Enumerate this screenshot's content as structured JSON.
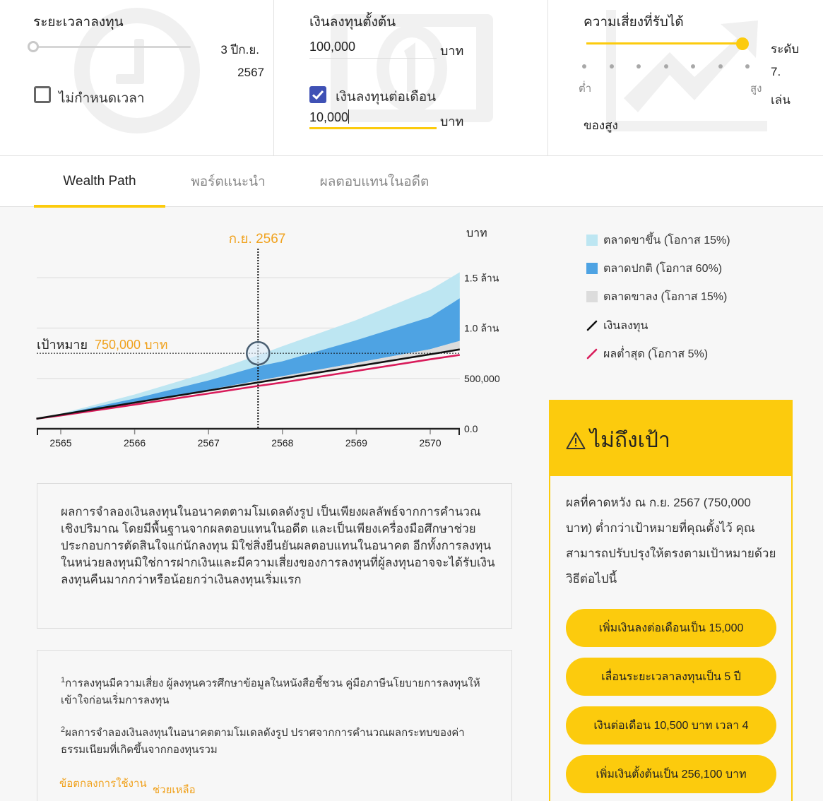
{
  "controls": {
    "duration": {
      "title": "ระยะเวลาลงทุน",
      "value_line1": "3 ปีก.ย.",
      "value_line2": "2567",
      "no_limit_label": "ไม่กำหนดเวลา",
      "no_limit_checked": false,
      "slider_position_pct": 0
    },
    "investment": {
      "title": "เงินลงทุนตั้งต้น",
      "initial_value": "100,000",
      "initial_unit": "บาท",
      "monthly_label": "เงินลงทุนต่อเดือน",
      "monthly_checked": true,
      "monthly_value": "10,000",
      "monthly_unit": "บาท"
    },
    "risk": {
      "title": "ความเสี่ยงที่รับได้",
      "low_label": "ต่ำ",
      "high_label": "สูง",
      "level_line1": "ระดับ",
      "level_line2": "7.",
      "level_line3": "เล่น",
      "level_line4": "ของสูง",
      "steps": 7,
      "selected_step": 7
    }
  },
  "tabs": [
    {
      "label": "Wealth Path",
      "active": true
    },
    {
      "label": "พอร์ตแนะนำ",
      "active": false
    },
    {
      "label": "ผลตอบแทนในอดีต",
      "active": false
    }
  ],
  "chart": {
    "marker_date_label": "ก.ย. 2567",
    "y_unit_label": "บาท",
    "goal_label": "เป้าหมาย",
    "goal_value_label": "750,000 บาท"
  },
  "chart_data": {
    "type": "area",
    "title": "Wealth Path",
    "xlabel": "",
    "ylabel": "บาท",
    "x": [
      2564.67,
      2565,
      2566,
      2567,
      2567.67,
      2568,
      2569,
      2570,
      2570.4
    ],
    "x_ticks": [
      "2565",
      "2566",
      "2567",
      "2568",
      "2569",
      "2570"
    ],
    "y_ticks": [
      "0.0",
      "500,000",
      "1.0 ล้าน",
      "1.5 ล้าน"
    ],
    "ylim": [
      0,
      1500000
    ],
    "grid": true,
    "legend_position": "right",
    "goal": {
      "label": "เป้าหมาย",
      "value": 750000,
      "date": "ก.ย. 2567",
      "x": 2567.67
    },
    "series": [
      {
        "name": "ตลาดขาขึ้น (โอกาส 15%)",
        "kind": "band-top",
        "color": "#bde6f2",
        "values": [
          100000,
          150000,
          340000,
          560000,
          730000,
          820000,
          1080000,
          1380000,
          1555000
        ]
      },
      {
        "name": "ตลาดปกติ (โอกาส 60%)",
        "kind": "band-top",
        "color": "#4ea3e3",
        "values": [
          100000,
          145000,
          300000,
          480000,
          620000,
          670000,
          880000,
          1110000,
          1296000
        ]
      },
      {
        "name": "ตลาดขาลง (โอกาส 15%)",
        "kind": "band-top",
        "color": "#dcdcdc",
        "values": [
          100000,
          140000,
          262000,
          388000,
          478000,
          522000,
          655000,
          790000,
          873000
        ]
      },
      {
        "name": "เงินลงทุน",
        "kind": "line",
        "color": "#111111",
        "values": [
          100000,
          140000,
          260000,
          380000,
          460000,
          500000,
          620000,
          740000,
          788000
        ]
      },
      {
        "name": "ผลต่ำสุด (โอกาส 5%)",
        "kind": "line",
        "color": "#d81b5a",
        "values": [
          100000,
          132000,
          240000,
          350000,
          425000,
          460000,
          575000,
          690000,
          733000
        ]
      }
    ]
  },
  "legend": [
    {
      "label": "ตลาดขาขึ้น (โอกาส 15%)",
      "type": "box",
      "color": "#bde6f2"
    },
    {
      "label": "ตลาดปกติ (โอกาส 60%)",
      "type": "box",
      "color": "#4ea3e3"
    },
    {
      "label": "ตลาดขาลง (โอกาส 15%)",
      "type": "box",
      "color": "#dcdcdc"
    },
    {
      "label": "เงินลงทุน",
      "type": "line",
      "color": "#111111"
    },
    {
      "label": "ผลต่ำสุด (โอกาส 5%)",
      "type": "line",
      "color": "#d81b5a"
    }
  ],
  "alert": {
    "icon": "warning-icon",
    "title": "ไม่ถึงเป้า",
    "body": "ผลที่คาดหวัง ณ ก.ย. 2567 (750,000 บาท) ต่ำกว่าเป้าหมายที่คุณตั้งไว้ คุณสามารถปรับปรุงให้ตรงตามเป้าหมายด้วยวิธีต่อไปนี้",
    "options": [
      "เพิ่มเงินลงต่อเดือนเป็น 15,000",
      "เลื่อนระยะเวลาลงทุนเป็น 5 ปี",
      "เงินต่อเดือน 10,500 บาท เวลา 4",
      "เพิ่มเงินตั้งต้นเป็น 256,100 บาท"
    ]
  },
  "disclaimer": {
    "main": "ผลการจำลองเงินลงทุนในอนาคตตามโมเดลดังรูป เป็นเพียงผลลัพธ์จากการคำนวณเชิงปริมาณ โดยมีพื้นฐานจากผลตอบแทนในอดีต และเป็นเพียงเครื่องมือศึกษาช่วยประกอบการตัดสินใจแก่นักลงทุน มิใช่สิ่งยืนยันผลตอบแทนในอนาคต อีกทั้งการลงทุนในหน่วยลงทุนมิใช่การฝากเงินและมีความเสี่ยงของการลงทุนที่ผู้ลงทุนอาจจะได้รับเงินลงทุนคืนมากกว่าหรือน้อยกว่าเงินลงทุนเริ่มแรก",
    "footnotes": [
      {
        "num": "1",
        "text": "การลงทุนมีความเสี่ยง ผู้ลงทุนควรศึกษาข้อมูลในหนังสือชี้ชวน คู่มือภาษีนโยบายการลงทุนให้เข้าใจก่อนเริ่มการลงทุน"
      },
      {
        "num": "2",
        "text": "ผลการจำลองเงินลงทุนในอนาคตตามโมเดลดังรูป ปราศจากการคำนวณผลกระทบของค่าธรรมเนียมที่เกิดขึ้นจากกองทุนรวม"
      }
    ],
    "links": {
      "terms": "ข้อตกลงการใช้งาน",
      "help": "ช่วยเหลือ"
    }
  },
  "colors": {
    "accent": "#fccb0d",
    "checkbox": "#3f51b5",
    "orange_text": "#f0a21e",
    "bull": "#bde6f2",
    "normal": "#4ea3e3",
    "bear": "#dcdcdc",
    "invested": "#111111",
    "worst": "#d81b5a"
  }
}
